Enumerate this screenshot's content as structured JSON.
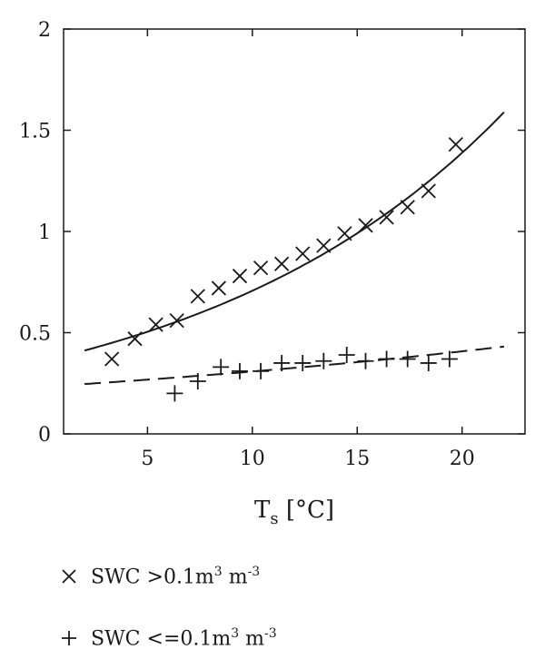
{
  "chart_data": {
    "type": "scatter",
    "xlim": [
      1,
      23
    ],
    "ylim": [
      0,
      2
    ],
    "xticks": [
      5,
      10,
      15,
      20
    ],
    "xtick_labels": [
      "5",
      "10",
      "15",
      "20"
    ],
    "yticks": [
      0,
      0.5,
      1,
      1.5,
      2
    ],
    "ytick_labels": [
      "0",
      "0.5",
      "1",
      "1.5",
      "2"
    ],
    "xlabel": {
      "main": "T",
      "sub": "s",
      "rest": " [°C]"
    },
    "ylabel": "",
    "grid": false,
    "legend_position": "below",
    "series": [
      {
        "name": "SWC >0.1m3 m-3",
        "marker": "x",
        "x": [
          3.3,
          4.4,
          5.4,
          6.4,
          7.4,
          8.4,
          9.4,
          10.4,
          11.4,
          12.4,
          13.4,
          14.4,
          15.4,
          16.4,
          17.4,
          18.4,
          19.7
        ],
        "y": [
          0.37,
          0.47,
          0.54,
          0.56,
          0.68,
          0.72,
          0.78,
          0.82,
          0.84,
          0.89,
          0.93,
          0.99,
          1.03,
          1.07,
          1.12,
          1.2,
          1.43
        ]
      },
      {
        "name": "SWC <=0.1m3 m-3",
        "marker": "+",
        "x": [
          6.3,
          7.4,
          8.5,
          9.4,
          10.4,
          11.4,
          12.4,
          13.4,
          14.5,
          15.4,
          16.4,
          17.4,
          18.4,
          19.4
        ],
        "y": [
          0.2,
          0.26,
          0.33,
          0.31,
          0.31,
          0.35,
          0.35,
          0.36,
          0.39,
          0.36,
          0.37,
          0.37,
          0.35,
          0.37
        ]
      }
    ],
    "fits": [
      {
        "style": "solid",
        "a": 0.36,
        "b": 0.0675,
        "x_range": [
          2,
          22
        ]
      },
      {
        "style": "dashed",
        "a": 0.233,
        "b": 0.028,
        "x_range": [
          2,
          22
        ]
      }
    ]
  },
  "legend": {
    "items": [
      {
        "symbol": "×",
        "prefix": "SWC >0.1m",
        "sup1": "3",
        "mid": " m",
        "sup2": "-3"
      },
      {
        "symbol": "+",
        "prefix": "SWC <=0.1m",
        "sup1": "3",
        "mid": " m",
        "sup2": "-3"
      }
    ]
  }
}
